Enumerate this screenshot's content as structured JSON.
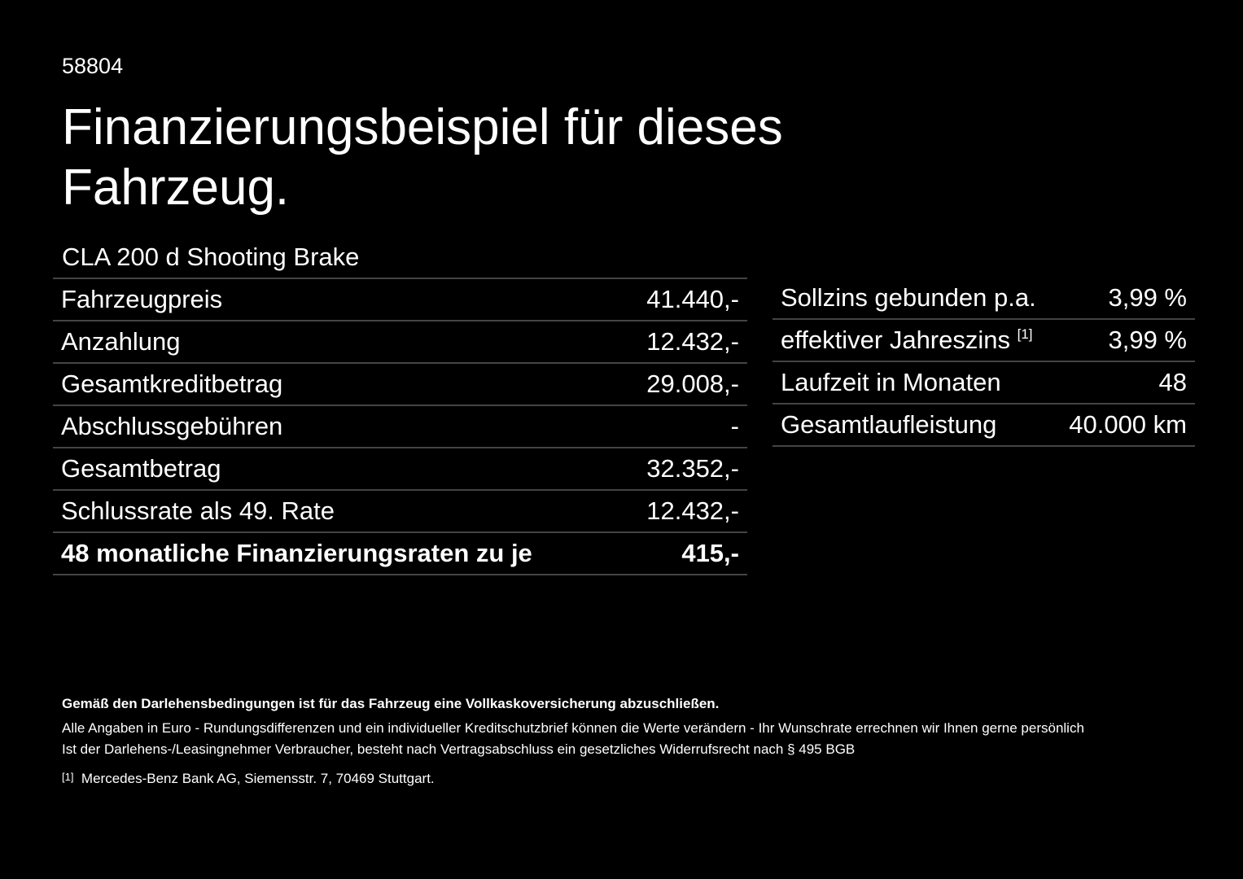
{
  "header": {
    "id": "58804",
    "title_line1": "Finanzierungsbeispiel für dieses",
    "title_line2": "Fahrzeug."
  },
  "model": "CLA 200 d Shooting Brake",
  "left_table": {
    "rows": [
      [
        "Fahrzeugpreis",
        "41.440,-"
      ],
      [
        "Anzahlung",
        "12.432,-"
      ],
      [
        "Gesamtkreditbetrag",
        "29.008,-"
      ],
      [
        "Abschlussgebühren",
        "-"
      ],
      [
        "Gesamtbetrag",
        "32.352,-"
      ],
      [
        "Schlussrate als 49. Rate",
        "12.432,-"
      ],
      [
        "48 monatliche Finanzierungsraten zu je",
        "415,-"
      ]
    ]
  },
  "right_table": {
    "rows": [
      [
        "Sollzins gebunden p.a.",
        "3,99 %"
      ],
      [
        "effektiver Jahreszins",
        "3,99 %"
      ],
      [
        "Laufzeit in Monaten",
        "48"
      ],
      [
        "Gesamtlaufleistung",
        "40.000 km"
      ]
    ],
    "footnote_ref": "[1]"
  },
  "footer": {
    "bold": "Gemäß den Darlehensbedingungen ist für das Fahrzeug eine Vollkaskoversicherung abzuschließen.",
    "line1": "Alle Angaben in Euro - Rundungsdifferenzen und ein individueller Kreditschutzbrief können die Werte verändern - Ihr Wunschrate errechnen wir Ihnen gerne persönlich",
    "line2": "Ist der Darlehens-/Leasingnehmer Verbraucher, besteht nach Vertragsabschluss ein gesetzliches Widerrufsrecht nach § 495 BGB",
    "note_mark": "[1]",
    "note_text": "Mercedes-Benz Bank AG, Siemensstr. 7, 70469 Stuttgart."
  }
}
